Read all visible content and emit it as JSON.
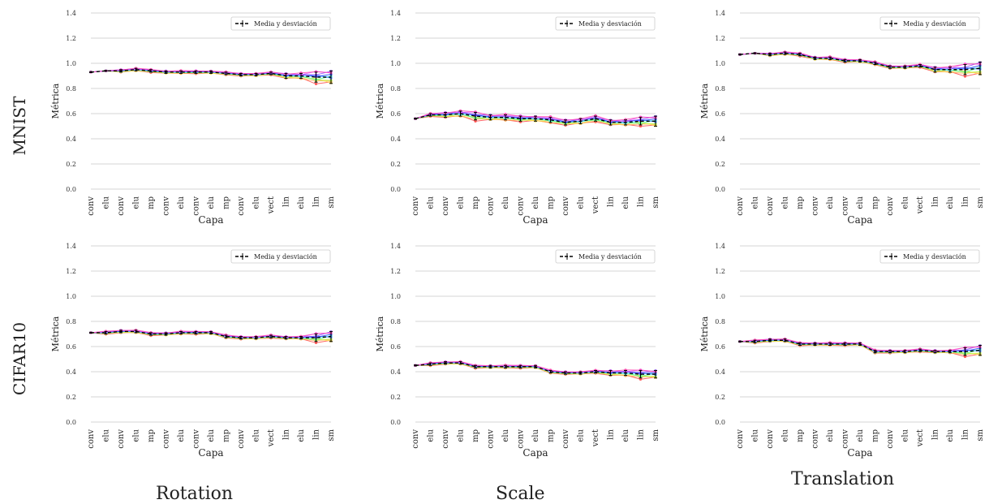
{
  "figure": {
    "row_labels": [
      "MNIST",
      "CIFAR10"
    ],
    "column_labels": [
      "Rotation",
      "Scale",
      "Translation"
    ]
  },
  "legend_label": "Media y desviación",
  "colors": {
    "series": [
      "#ff4b4b",
      "#ffa64b",
      "#ffe34b",
      "#b3ff4b",
      "#4bff8a",
      "#4be8ff",
      "#4b8aff",
      "#1f3dff",
      "#8a4bff",
      "#e04bff",
      "#ff4bb3"
    ],
    "mean": "#000000",
    "grid": "#c8c8c8"
  },
  "chart_data": [
    {
      "type": "line",
      "dataset": "MNIST",
      "transformation": "Rotation",
      "categories": [
        "conv",
        "elu",
        "conv",
        "elu",
        "mp",
        "conv",
        "elu",
        "conv",
        "elu",
        "mp",
        "conv",
        "elu",
        "vect",
        "lin",
        "elu",
        "lin",
        "sm"
      ],
      "xlabel": "Capa",
      "ylabel": "Métrica",
      "ylim": [
        0,
        1.4
      ],
      "yticks": [
        0.0,
        0.2,
        0.4,
        0.6,
        0.8,
        1.0,
        1.2,
        1.4
      ],
      "grid": true,
      "legend_position": "top-right",
      "mean": [
        0.93,
        0.94,
        0.94,
        0.95,
        0.94,
        0.93,
        0.93,
        0.93,
        0.93,
        0.92,
        0.91,
        0.91,
        0.92,
        0.9,
        0.9,
        0.89,
        0.89
      ],
      "spread": [
        0.0,
        0.0,
        0.01,
        0.01,
        0.01,
        0.01,
        0.01,
        0.01,
        0.01,
        0.01,
        0.01,
        0.01,
        0.01,
        0.02,
        0.02,
        0.04,
        0.05
      ]
    },
    {
      "type": "line",
      "dataset": "MNIST",
      "transformation": "Scale",
      "categories": [
        "conv",
        "elu",
        "conv",
        "elu",
        "mp",
        "conv",
        "elu",
        "conv",
        "elu",
        "mp",
        "conv",
        "elu",
        "vect",
        "lin",
        "elu",
        "lin",
        "sm"
      ],
      "xlabel": "Capa",
      "ylabel": "Métrica",
      "ylim": [
        0,
        1.4
      ],
      "yticks": [
        0.0,
        0.2,
        0.4,
        0.6,
        0.8,
        1.0,
        1.2,
        1.4
      ],
      "grid": true,
      "legend_position": "top-right",
      "mean": [
        0.56,
        0.59,
        0.59,
        0.6,
        0.58,
        0.57,
        0.57,
        0.56,
        0.56,
        0.55,
        0.53,
        0.54,
        0.56,
        0.53,
        0.53,
        0.54,
        0.54
      ],
      "spread": [
        0.0,
        0.01,
        0.02,
        0.02,
        0.03,
        0.02,
        0.02,
        0.02,
        0.02,
        0.02,
        0.02,
        0.02,
        0.02,
        0.02,
        0.02,
        0.03,
        0.04
      ]
    },
    {
      "type": "line",
      "dataset": "MNIST",
      "transformation": "Translation",
      "categories": [
        "conv",
        "elu",
        "conv",
        "elu",
        "mp",
        "conv",
        "elu",
        "conv",
        "elu",
        "mp",
        "conv",
        "elu",
        "vect",
        "lin",
        "elu",
        "lin",
        "sm"
      ],
      "xlabel": "Capa",
      "ylabel": "Métrica",
      "ylim": [
        0,
        1.4
      ],
      "yticks": [
        0.0,
        0.2,
        0.4,
        0.6,
        0.8,
        1.0,
        1.2,
        1.4
      ],
      "grid": true,
      "legend_position": "top-right",
      "mean": [
        1.07,
        1.08,
        1.07,
        1.08,
        1.07,
        1.04,
        1.04,
        1.02,
        1.02,
        1.0,
        0.97,
        0.97,
        0.98,
        0.95,
        0.95,
        0.95,
        0.96
      ],
      "spread": [
        0.0,
        0.0,
        0.01,
        0.01,
        0.01,
        0.01,
        0.01,
        0.01,
        0.01,
        0.01,
        0.01,
        0.01,
        0.01,
        0.02,
        0.02,
        0.04,
        0.05
      ]
    },
    {
      "type": "line",
      "dataset": "CIFAR10",
      "transformation": "Rotation",
      "categories": [
        "conv",
        "elu",
        "conv",
        "elu",
        "mp",
        "conv",
        "elu",
        "conv",
        "elu",
        "mp",
        "conv",
        "elu",
        "vect",
        "lin",
        "elu",
        "lin",
        "sm"
      ],
      "xlabel": "Capa",
      "ylabel": "Métrica",
      "ylim": [
        0,
        1.4
      ],
      "yticks": [
        0.0,
        0.2,
        0.4,
        0.6,
        0.8,
        1.0,
        1.2,
        1.4
      ],
      "grid": true,
      "legend_position": "top-right",
      "mean": [
        0.71,
        0.71,
        0.72,
        0.72,
        0.7,
        0.7,
        0.71,
        0.71,
        0.71,
        0.68,
        0.67,
        0.67,
        0.68,
        0.67,
        0.67,
        0.67,
        0.68
      ],
      "spread": [
        0.0,
        0.01,
        0.01,
        0.01,
        0.01,
        0.01,
        0.01,
        0.01,
        0.01,
        0.01,
        0.01,
        0.01,
        0.01,
        0.01,
        0.01,
        0.03,
        0.04
      ]
    },
    {
      "type": "line",
      "dataset": "CIFAR10",
      "transformation": "Scale",
      "categories": [
        "conv",
        "elu",
        "conv",
        "elu",
        "mp",
        "conv",
        "elu",
        "conv",
        "elu",
        "mp",
        "conv",
        "elu",
        "vect",
        "lin",
        "elu",
        "lin",
        "sm"
      ],
      "xlabel": "Capa",
      "ylabel": "Métrica",
      "ylim": [
        0,
        1.4
      ],
      "yticks": [
        0.0,
        0.2,
        0.4,
        0.6,
        0.8,
        1.0,
        1.2,
        1.4
      ],
      "grid": true,
      "legend_position": "top-right",
      "mean": [
        0.45,
        0.46,
        0.47,
        0.47,
        0.44,
        0.44,
        0.44,
        0.44,
        0.44,
        0.4,
        0.39,
        0.39,
        0.4,
        0.39,
        0.39,
        0.38,
        0.38
      ],
      "spread": [
        0.0,
        0.01,
        0.01,
        0.01,
        0.01,
        0.01,
        0.01,
        0.01,
        0.01,
        0.01,
        0.01,
        0.01,
        0.01,
        0.02,
        0.02,
        0.03,
        0.03
      ]
    },
    {
      "type": "line",
      "dataset": "CIFAR10",
      "transformation": "Translation",
      "categories": [
        "conv",
        "elu",
        "conv",
        "elu",
        "mp",
        "conv",
        "elu",
        "conv",
        "elu",
        "mp",
        "conv",
        "elu",
        "vect",
        "lin",
        "elu",
        "lin",
        "sm"
      ],
      "xlabel": "Capa",
      "ylabel": "Métrica",
      "ylim": [
        0,
        1.4
      ],
      "yticks": [
        0.0,
        0.2,
        0.4,
        0.6,
        0.8,
        1.0,
        1.2,
        1.4
      ],
      "grid": true,
      "legend_position": "top-right",
      "mean": [
        0.64,
        0.64,
        0.65,
        0.65,
        0.62,
        0.62,
        0.62,
        0.62,
        0.62,
        0.56,
        0.56,
        0.56,
        0.57,
        0.56,
        0.56,
        0.56,
        0.57
      ],
      "spread": [
        0.0,
        0.01,
        0.01,
        0.01,
        0.01,
        0.01,
        0.01,
        0.01,
        0.01,
        0.01,
        0.01,
        0.01,
        0.01,
        0.01,
        0.01,
        0.03,
        0.04
      ]
    }
  ]
}
